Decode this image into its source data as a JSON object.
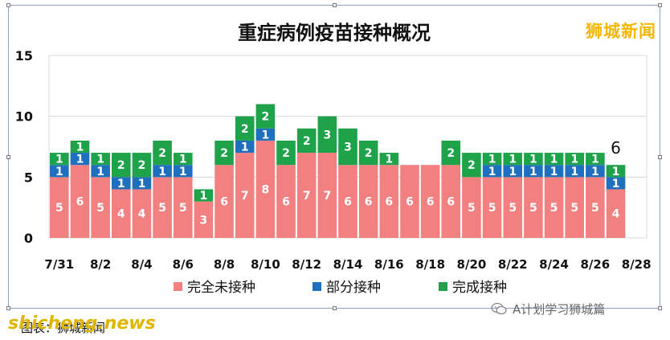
{
  "title": "重症病例疫苗接种概况",
  "brand": "狮城新闻",
  "watermark_left": "shicheng.news",
  "caption": "图表：狮城新闻",
  "wechat_account": "A计划学习狮城篇",
  "colors": {
    "unvaccinated": "#f28080",
    "partial": "#1f6fbf",
    "full": "#1ea24a",
    "grid": "#d9d9d9",
    "brand": "#f5b800"
  },
  "chart_data": {
    "type": "bar",
    "stacked": true,
    "title": "重症病例疫苗接种概况",
    "xlabel": "",
    "ylabel": "",
    "ylim": [
      0,
      15
    ],
    "yticks": [
      0,
      5,
      10,
      15
    ],
    "grid": true,
    "legend_position": "bottom",
    "x_tick_labels": [
      "7/31",
      "8/2",
      "8/4",
      "8/6",
      "8/8",
      "8/10",
      "8/12",
      "8/14",
      "8/16",
      "8/18",
      "8/20",
      "8/22",
      "8/24",
      "8/26",
      "8/28"
    ],
    "categories": [
      "7/31",
      "8/1",
      "8/2",
      "8/3",
      "8/4",
      "8/5",
      "8/6",
      "8/7",
      "8/8",
      "8/9",
      "8/10",
      "8/11",
      "8/12",
      "8/13",
      "8/14",
      "8/15",
      "8/16",
      "8/17",
      "8/18",
      "8/19",
      "8/20",
      "8/21",
      "8/22",
      "8/23",
      "8/24",
      "8/25",
      "8/26",
      "8/27",
      "8/28"
    ],
    "series": [
      {
        "name": "完全未接种",
        "color": "#f28080",
        "values": [
          5,
          6,
          5,
          4,
          4,
          5,
          5,
          3,
          6,
          7,
          8,
          6,
          7,
          7,
          6,
          6,
          6,
          6,
          6,
          6,
          5,
          5,
          5,
          5,
          5,
          5,
          5,
          4,
          null
        ]
      },
      {
        "name": "部分接种",
        "color": "#1f6fbf",
        "values": [
          1,
          1,
          1,
          1,
          1,
          1,
          1,
          0,
          0,
          1,
          1,
          0,
          0,
          0,
          0,
          0,
          0,
          0,
          0,
          0,
          0,
          1,
          1,
          1,
          1,
          1,
          1,
          1,
          null
        ]
      },
      {
        "name": "完成接种",
        "color": "#1ea24a",
        "values": [
          1,
          1,
          1,
          2,
          2,
          2,
          1,
          1,
          2,
          2,
          2,
          2,
          2,
          3,
          3,
          2,
          1,
          0,
          0,
          2,
          2,
          1,
          1,
          1,
          1,
          1,
          1,
          1,
          null
        ]
      }
    ],
    "annotations": [
      {
        "category": "8/27",
        "text": "6"
      }
    ]
  }
}
